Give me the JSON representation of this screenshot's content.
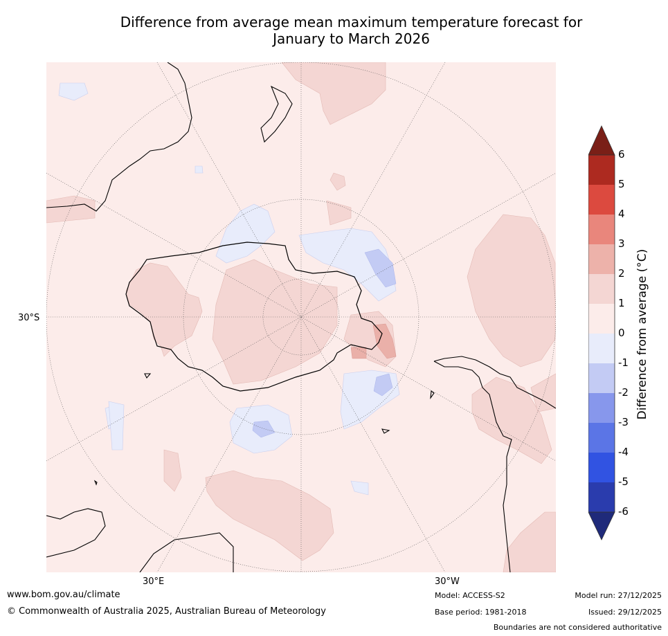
{
  "title": {
    "line1": "Difference from average mean maximum temperature forecast for",
    "line2": "January to March 2026"
  },
  "map": {
    "projection": "south polar stereographic",
    "lat_labels": [
      "30°S"
    ],
    "lon_labels": [
      "30°E",
      "30°W"
    ]
  },
  "legend": {
    "label": "Difference from average (°C)",
    "ticks": [
      "6",
      "5",
      "4",
      "3",
      "2",
      "1",
      "0",
      "-1",
      "-2",
      "-3",
      "-4",
      "-5",
      "-6"
    ],
    "colors": {
      "gt6": "#7a1f17",
      "5_6": "#ad2a20",
      "4_5": "#dc4a3f",
      "3_4": "#e9867c",
      "2_3": "#edb2aa",
      "1_2": "#f4d6d3",
      "0_1": "#fcecea",
      "m1_0": "#e8ecfb",
      "m2_m1": "#c3cbf4",
      "m3_m2": "#8797ec",
      "m4_m3": "#5b75e6",
      "m5_m4": "#3153e2",
      "m6_m5": "#2a3cad",
      "lt_m6": "#1f2a7a"
    }
  },
  "footer": {
    "website": "www.bom.gov.au/climate",
    "copyright": "© Commonwealth of Australia 2025, Australian Bureau of Meteorology",
    "model": "Model: ACCESS-S2",
    "base_period": "Base period: 1981-2018",
    "model_run": "Model run: 27/12/2025",
    "issued": "Issued: 29/12/2025",
    "disclaimer": "Boundaries are not considered authoritative"
  }
}
